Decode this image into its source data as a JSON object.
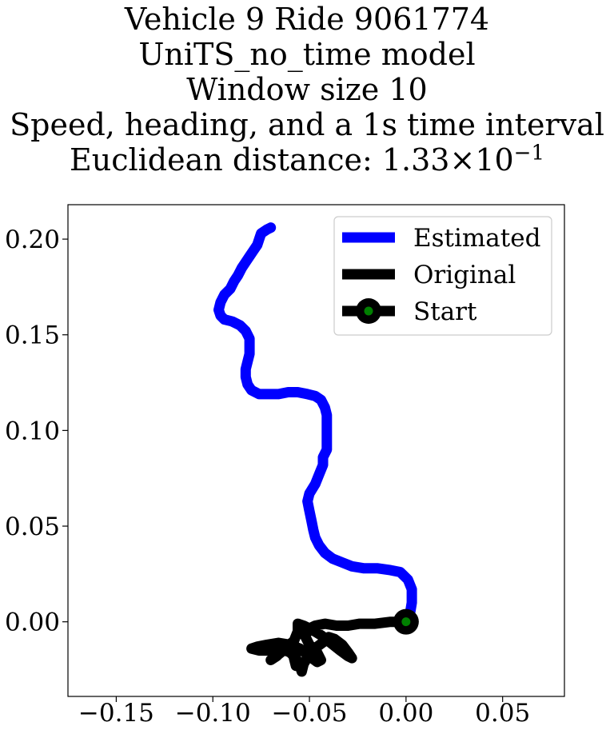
{
  "title_lines": [
    "Vehicle 9 Ride 9061774",
    "UniTS_no_time model",
    "Window size 10",
    "Speed, heading, and a 1s time interval"
  ],
  "title_distance": {
    "prefix": "Euclidean distance: ",
    "mantissa": "1.33",
    "times": "×",
    "base": "10",
    "exponent": "−1"
  },
  "chart_data": {
    "type": "line",
    "title": "Vehicle 9 Ride 9061774 / UniTS_no_time model / Window size 10 / Speed, heading, and a 1s time interval / Euclidean distance: 1.33×10^-1",
    "xlabel": "",
    "ylabel": "",
    "xlim": [
      -0.175,
      0.082
    ],
    "ylim": [
      -0.039,
      0.218
    ],
    "xticks": [
      -0.15,
      -0.1,
      -0.05,
      0.0,
      0.05
    ],
    "xtick_labels": [
      "−0.15",
      "−0.10",
      "−0.05",
      "0.00",
      "0.05"
    ],
    "yticks": [
      0.0,
      0.05,
      0.1,
      0.15,
      0.2
    ],
    "ytick_labels": [
      "0.00",
      "0.05",
      "0.10",
      "0.15",
      "0.20"
    ],
    "grid": false,
    "legend_position": "top-right",
    "series": [
      {
        "name": "Estimated",
        "color": "#0000ff",
        "points": [
          [
            0.0,
            0.0
          ],
          [
            0.002,
            0.004
          ],
          [
            0.003,
            0.01
          ],
          [
            0.003,
            0.017
          ],
          [
            0.001,
            0.022
          ],
          [
            -0.003,
            0.026
          ],
          [
            -0.008,
            0.027
          ],
          [
            -0.015,
            0.028
          ],
          [
            -0.022,
            0.028
          ],
          [
            -0.028,
            0.029
          ],
          [
            -0.033,
            0.031
          ],
          [
            -0.038,
            0.033
          ],
          [
            -0.042,
            0.036
          ],
          [
            -0.045,
            0.04
          ],
          [
            -0.047,
            0.044
          ],
          [
            -0.048,
            0.048
          ],
          [
            -0.049,
            0.053
          ],
          [
            -0.05,
            0.058
          ],
          [
            -0.051,
            0.063
          ],
          [
            -0.05,
            0.067
          ],
          [
            -0.047,
            0.072
          ],
          [
            -0.045,
            0.077
          ],
          [
            -0.043,
            0.082
          ],
          [
            -0.043,
            0.086
          ],
          [
            -0.041,
            0.09
          ],
          [
            -0.041,
            0.095
          ],
          [
            -0.041,
            0.099
          ],
          [
            -0.041,
            0.104
          ],
          [
            -0.041,
            0.108
          ],
          [
            -0.042,
            0.112
          ],
          [
            -0.044,
            0.116
          ],
          [
            -0.047,
            0.118
          ],
          [
            -0.051,
            0.119
          ],
          [
            -0.056,
            0.12
          ],
          [
            -0.061,
            0.12
          ],
          [
            -0.066,
            0.119
          ],
          [
            -0.071,
            0.119
          ],
          [
            -0.076,
            0.119
          ],
          [
            -0.08,
            0.121
          ],
          [
            -0.082,
            0.124
          ],
          [
            -0.083,
            0.128
          ],
          [
            -0.083,
            0.132
          ],
          [
            -0.082,
            0.136
          ],
          [
            -0.081,
            0.14
          ],
          [
            -0.081,
            0.144
          ],
          [
            -0.081,
            0.148
          ],
          [
            -0.083,
            0.152
          ],
          [
            -0.086,
            0.155
          ],
          [
            -0.09,
            0.157
          ],
          [
            -0.094,
            0.158
          ],
          [
            -0.096,
            0.16
          ],
          [
            -0.097,
            0.163
          ],
          [
            -0.096,
            0.167
          ],
          [
            -0.094,
            0.171
          ],
          [
            -0.091,
            0.174
          ],
          [
            -0.089,
            0.178
          ],
          [
            -0.087,
            0.181
          ],
          [
            -0.085,
            0.185
          ],
          [
            -0.083,
            0.188
          ],
          [
            -0.081,
            0.191
          ],
          [
            -0.079,
            0.194
          ],
          [
            -0.077,
            0.197
          ],
          [
            -0.076,
            0.2
          ],
          [
            -0.075,
            0.203
          ],
          [
            -0.072,
            0.205
          ],
          [
            -0.07,
            0.206
          ]
        ]
      },
      {
        "name": "Original",
        "color": "#000000",
        "points": [
          [
            0.0,
            0.0
          ],
          [
            -0.008,
            0.0
          ],
          [
            -0.016,
            -0.001
          ],
          [
            -0.024,
            -0.001
          ],
          [
            -0.03,
            -0.002
          ],
          [
            -0.036,
            -0.002
          ],
          [
            -0.042,
            -0.001
          ],
          [
            -0.047,
            -0.002
          ],
          [
            -0.051,
            -0.004
          ],
          [
            -0.052,
            -0.008
          ],
          [
            -0.05,
            -0.012
          ],
          [
            -0.046,
            -0.016
          ],
          [
            -0.044,
            -0.02
          ],
          [
            -0.046,
            -0.021
          ],
          [
            -0.05,
            -0.018
          ],
          [
            -0.055,
            -0.014
          ],
          [
            -0.06,
            -0.012
          ],
          [
            -0.066,
            -0.011
          ],
          [
            -0.072,
            -0.012
          ],
          [
            -0.077,
            -0.013
          ],
          [
            -0.08,
            -0.014
          ],
          [
            -0.076,
            -0.015
          ],
          [
            -0.07,
            -0.015
          ],
          [
            -0.065,
            -0.014
          ],
          [
            -0.06,
            -0.016
          ],
          [
            -0.057,
            -0.019
          ],
          [
            -0.055,
            -0.023
          ],
          [
            -0.054,
            -0.026
          ],
          [
            -0.053,
            -0.022
          ],
          [
            -0.05,
            -0.017
          ],
          [
            -0.046,
            -0.013
          ],
          [
            -0.042,
            -0.01
          ],
          [
            -0.04,
            -0.008
          ],
          [
            -0.037,
            -0.009
          ],
          [
            -0.033,
            -0.012
          ],
          [
            -0.03,
            -0.016
          ],
          [
            -0.028,
            -0.019
          ],
          [
            -0.03,
            -0.018
          ],
          [
            -0.034,
            -0.015
          ],
          [
            -0.039,
            -0.011
          ],
          [
            -0.044,
            -0.007
          ],
          [
            -0.049,
            -0.004
          ],
          [
            -0.053,
            -0.002
          ],
          [
            -0.056,
            -0.001
          ],
          [
            -0.056,
            -0.005
          ],
          [
            -0.058,
            -0.01
          ],
          [
            -0.063,
            -0.014
          ],
          [
            -0.067,
            -0.018
          ],
          [
            -0.07,
            -0.02
          ],
          [
            -0.066,
            -0.017
          ],
          [
            -0.061,
            -0.013
          ],
          [
            -0.058,
            -0.012
          ],
          [
            -0.057,
            -0.015
          ],
          [
            -0.058,
            -0.019
          ],
          [
            -0.057,
            -0.023
          ]
        ]
      }
    ],
    "start_marker": {
      "name": "Start",
      "x": 0.0,
      "y": 0.0,
      "outer_color": "#000000",
      "inner_color": "#008000"
    },
    "legend": [
      {
        "label": "Estimated",
        "color": "#0000ff",
        "marker": "none"
      },
      {
        "label": "Original",
        "color": "#000000",
        "marker": "none"
      },
      {
        "label": "Start",
        "color": "#000000",
        "marker": "circle",
        "marker_color": "#008000"
      }
    ]
  }
}
